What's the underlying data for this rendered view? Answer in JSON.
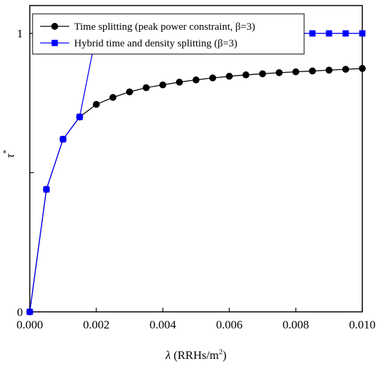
{
  "chart_data": {
    "type": "line",
    "xlabel": "λ (RRHs/m2)",
    "xlabel_parts": {
      "symbol": "λ",
      "unit_prefix": " (RRHs/m",
      "unit_exp": "2",
      "unit_suffix": ")"
    },
    "ylabel": "τ*",
    "ylabel_parts": {
      "symbol": "τ",
      "sup": "*"
    },
    "xlim": [
      0,
      0.01
    ],
    "ylim": [
      0,
      1.1
    ],
    "x_ticks": [
      {
        "value": 0,
        "label": "0.000"
      },
      {
        "value": 0.002,
        "label": "0.002"
      },
      {
        "value": 0.004,
        "label": "0.004"
      },
      {
        "value": 0.006,
        "label": "0.006"
      },
      {
        "value": 0.008,
        "label": "0.008"
      },
      {
        "value": 0.01,
        "label": "0.010"
      }
    ],
    "y_ticks": [
      {
        "value": 0,
        "label": "0"
      },
      {
        "value": 0.5,
        "label": ""
      },
      {
        "value": 1,
        "label": "1"
      }
    ],
    "grid": false,
    "legend_position": "top-left",
    "series": [
      {
        "name": "Time splitting (peak power constraint, β=3)",
        "color": "#000000",
        "marker": "circle",
        "x": [
          0,
          0.0005,
          0.001,
          0.0015,
          0.002,
          0.0025,
          0.003,
          0.0035,
          0.004,
          0.0045,
          0.005,
          0.0055,
          0.006,
          0.0065,
          0.007,
          0.0075,
          0.008,
          0.0085,
          0.009,
          0.0095,
          0.01
        ],
        "y": [
          0,
          0.44,
          0.62,
          0.7,
          0.745,
          0.77,
          0.79,
          0.805,
          0.815,
          0.825,
          0.833,
          0.84,
          0.846,
          0.851,
          0.855,
          0.859,
          0.862,
          0.865,
          0.868,
          0.871,
          0.874
        ]
      },
      {
        "name": "Hybrid time and density splitting (β=3)",
        "color": "#0000ff",
        "marker": "square",
        "x": [
          0,
          0.0005,
          0.001,
          0.0015,
          0.002,
          0.0025,
          0.003,
          0.0035,
          0.004,
          0.0045,
          0.005,
          0.0055,
          0.006,
          0.0065,
          0.007,
          0.0075,
          0.008,
          0.0085,
          0.009,
          0.0095,
          0.01
        ],
        "y": [
          0,
          0.44,
          0.62,
          0.7,
          1,
          1,
          1,
          1,
          1,
          1,
          1,
          1,
          1,
          1,
          1,
          1,
          1,
          1,
          1,
          1,
          1
        ]
      }
    ]
  }
}
